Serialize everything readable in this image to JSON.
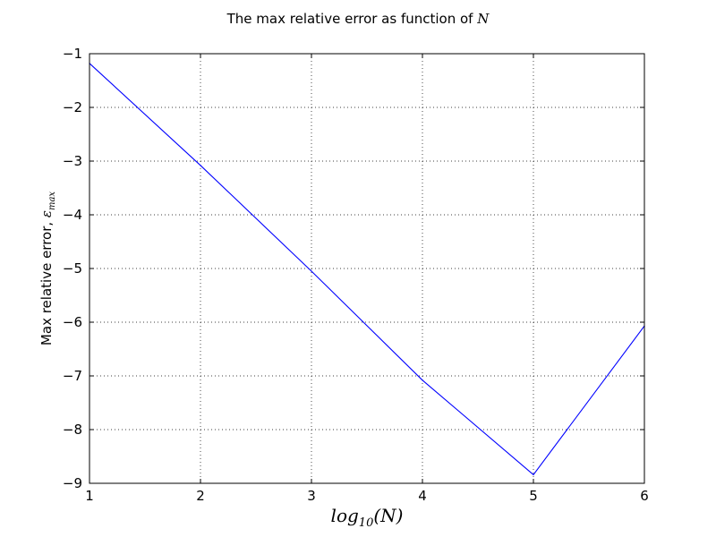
{
  "chart_data": {
    "type": "line",
    "title_prefix": "The max relative error as function of ",
    "title_math": "N",
    "xlabel": "log10(N)",
    "xlabel_parts": {
      "pre": "log",
      "sub": "10",
      "post": "(N)"
    },
    "ylabel_prefix": "Max relative error, ",
    "ylabel_math": "ε",
    "ylabel_sub": "max",
    "xlim": [
      1,
      6
    ],
    "ylim": [
      -9,
      -1
    ],
    "xticks": [
      1,
      2,
      3,
      4,
      5,
      6
    ],
    "xtick_labels": [
      "1",
      "2",
      "3",
      "4",
      "5",
      "6"
    ],
    "yticks": [
      -1,
      -2,
      -3,
      -4,
      -5,
      -6,
      -7,
      -8,
      -9
    ],
    "ytick_labels": [
      "−1",
      "−2",
      "−3",
      "−4",
      "−5",
      "−6",
      "−7",
      "−8",
      "−9"
    ],
    "grid": true,
    "series": [
      {
        "color": "#0000ff",
        "x": [
          1,
          2,
          3,
          4,
          5,
          6
        ],
        "y": [
          -1.18,
          -3.08,
          -5.05,
          -7.08,
          -8.84,
          -6.07
        ]
      }
    ]
  }
}
